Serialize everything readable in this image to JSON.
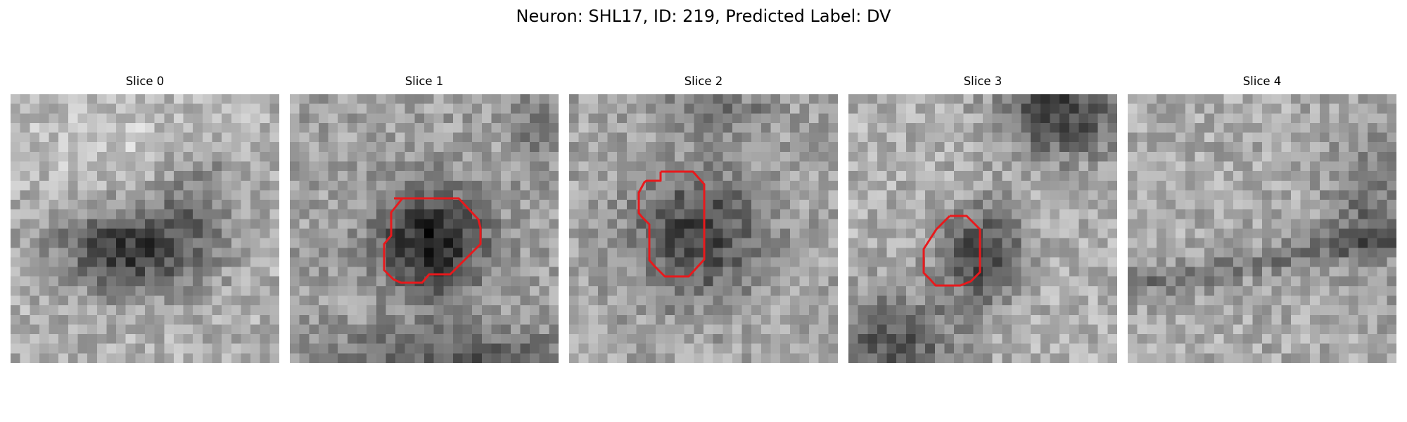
{
  "figure": {
    "title": "Neuron: SHL17, ID: 219, Predicted Label: DV"
  },
  "slices": [
    {
      "title": "Slice 0",
      "has_contour": false
    },
    {
      "title": "Slice 1",
      "has_contour": true
    },
    {
      "title": "Slice 2",
      "has_contour": true
    },
    {
      "title": "Slice 3",
      "has_contour": true
    },
    {
      "title": "Slice 4",
      "has_contour": false
    }
  ],
  "colormap": "gray",
  "contour_color": "#e8191c"
}
